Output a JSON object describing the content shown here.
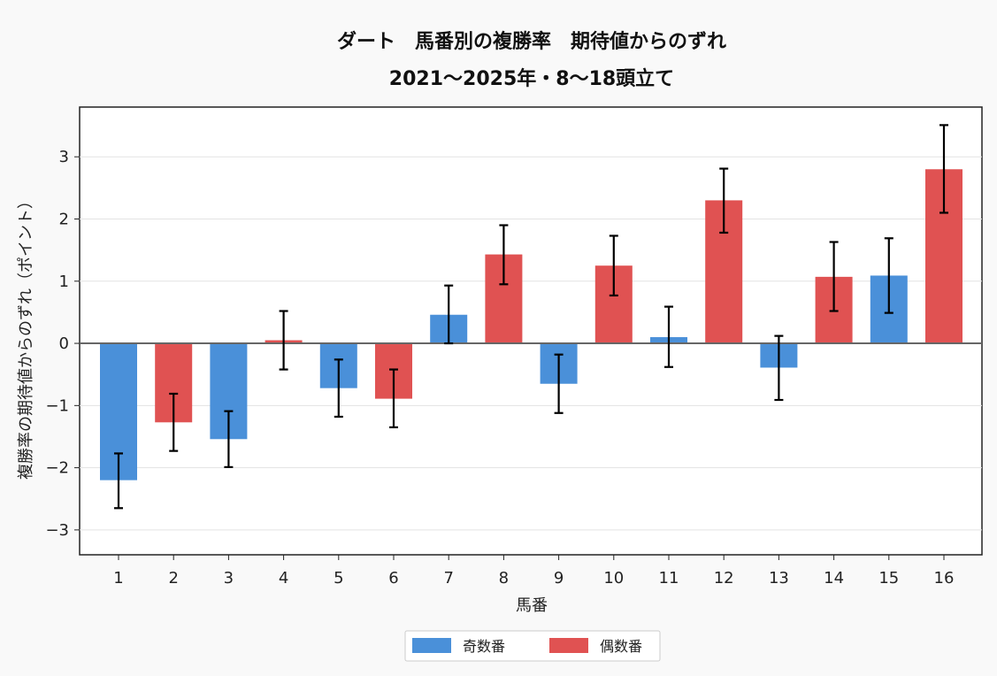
{
  "chart_data": {
    "type": "bar",
    "title": "ダート　馬番別の複勝率　期待値からのずれ",
    "subtitle": "2021〜2025年・8〜18頭立て",
    "xlabel": "馬番",
    "ylabel": "複勝率の期待値からのずれ（ポイント）",
    "categories": [
      "1",
      "2",
      "3",
      "4",
      "5",
      "6",
      "7",
      "8",
      "9",
      "10",
      "11",
      "12",
      "13",
      "14",
      "15",
      "16"
    ],
    "values": [
      -2.2,
      -1.27,
      -1.54,
      0.05,
      -0.72,
      -0.89,
      0.46,
      1.43,
      -0.65,
      1.25,
      0.1,
      2.3,
      -0.39,
      1.07,
      1.09,
      2.8
    ],
    "error_low": [
      -2.65,
      -1.73,
      -1.99,
      -0.42,
      -1.18,
      -1.35,
      0.0,
      0.95,
      -1.12,
      0.77,
      -0.38,
      1.78,
      -0.91,
      0.52,
      0.49,
      2.1
    ],
    "error_high": [
      -1.77,
      -0.81,
      -1.09,
      0.52,
      -0.26,
      -0.42,
      0.93,
      1.9,
      -0.18,
      1.73,
      0.59,
      2.81,
      0.12,
      1.63,
      1.69,
      3.51
    ],
    "group": [
      "odd",
      "even",
      "odd",
      "even",
      "odd",
      "even",
      "odd",
      "even",
      "odd",
      "even",
      "odd",
      "even",
      "odd",
      "even",
      "odd",
      "even"
    ],
    "ylim": [
      -3.4,
      3.8
    ],
    "yticks": [
      -3,
      -2,
      -1,
      0,
      1,
      2,
      3
    ],
    "ytick_labels": [
      "−3",
      "−2",
      "−1",
      "0",
      "1",
      "2",
      "3"
    ],
    "grid": "horizontal",
    "legend": {
      "placement": "bottom-center",
      "items": [
        {
          "key": "odd",
          "label": "奇数番",
          "color": "#4a90d9"
        },
        {
          "key": "even",
          "label": "偶数番",
          "color": "#e05252"
        }
      ]
    },
    "colors": {
      "odd": "#4a90d9",
      "even": "#e05252"
    }
  }
}
